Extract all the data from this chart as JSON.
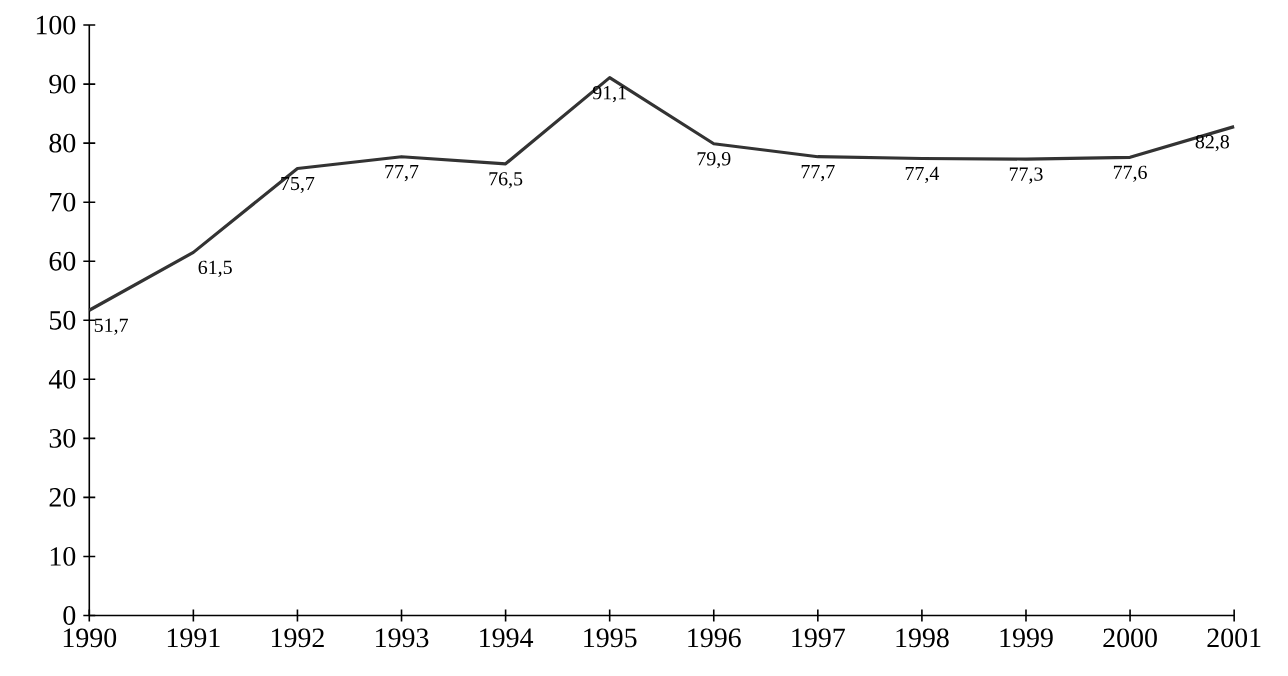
{
  "chart_data": {
    "type": "line",
    "x": [
      1990,
      1991,
      1992,
      1993,
      1994,
      1995,
      1996,
      1997,
      1998,
      1999,
      2000,
      2001
    ],
    "values": [
      51.7,
      61.5,
      75.7,
      77.7,
      76.5,
      91.1,
      79.9,
      77.7,
      77.4,
      77.3,
      77.6,
      82.8
    ],
    "value_labels": [
      "51,7",
      "61,5",
      "75,7",
      "77,7",
      "76,5",
      "91,1",
      "79,9",
      "77,7",
      "77,4",
      "77,3",
      "77,6",
      "82,8"
    ],
    "color": "#333333",
    "xlim": [
      1990,
      2001
    ],
    "xticks": [
      1990,
      1991,
      1992,
      1993,
      1994,
      1995,
      1996,
      1997,
      1998,
      1999,
      2000,
      2001
    ],
    "ylim": [
      0,
      100
    ],
    "yticks": [
      0,
      10,
      20,
      30,
      40,
      50,
      60,
      70,
      80,
      90,
      100
    ],
    "grid": false,
    "marker": "none",
    "line_style": "solid"
  }
}
